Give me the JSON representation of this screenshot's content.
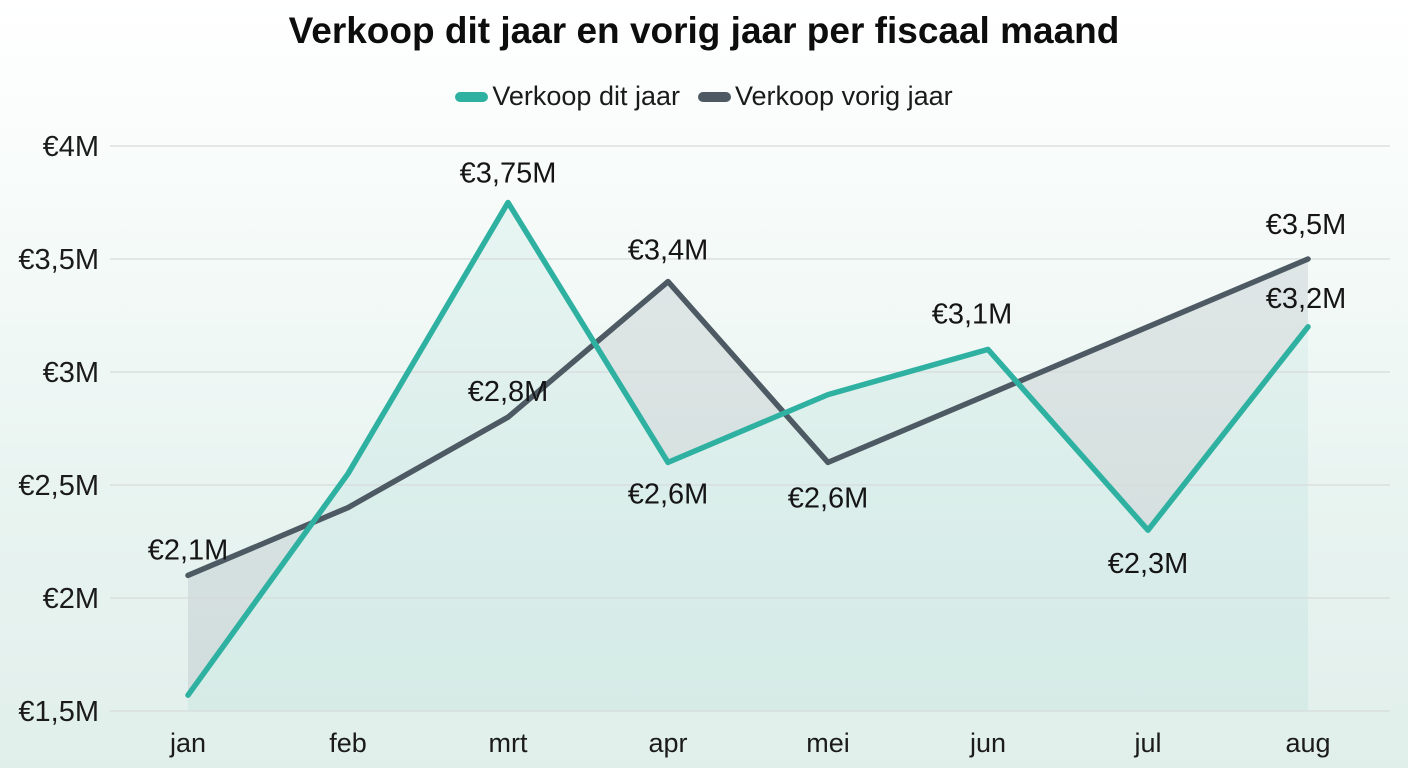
{
  "title": "Verkoop dit jaar en vorig jaar per fiscaal maand",
  "legend": {
    "items": [
      {
        "label": "Verkoop dit jaar",
        "color": "#2fb1a2"
      },
      {
        "label": "Verkoop vorig jaar",
        "color": "#4d5a63"
      }
    ]
  },
  "chart_data": {
    "type": "line",
    "title": "Verkoop dit jaar en vorig jaar per fiscaal maand",
    "categories": [
      "jan",
      "feb",
      "mrt",
      "apr",
      "mei",
      "jun",
      "jul",
      "aug"
    ],
    "series": [
      {
        "name": "Verkoop dit jaar",
        "color": "#2fb1a2",
        "values": [
          1.57,
          2.55,
          3.75,
          2.6,
          2.9,
          3.1,
          2.3,
          3.2
        ],
        "point_labels": [
          "",
          "",
          "€3,75M",
          "€2,6M",
          "",
          "€3,1M",
          "€2,3M",
          "€3,2M"
        ]
      },
      {
        "name": "Verkoop vorig jaar",
        "color": "#4d5a63",
        "values": [
          2.1,
          2.4,
          2.8,
          3.4,
          2.6,
          2.9,
          3.2,
          3.5
        ],
        "point_labels": [
          "€2,1M",
          "",
          "€2,8M",
          "€3,4M",
          "€2,6M",
          "",
          "",
          "€3,5M"
        ]
      }
    ],
    "y_ticks": [
      {
        "value": 4,
        "label": "€4M"
      },
      {
        "value": 3.5,
        "label": "€3,5M"
      },
      {
        "value": 3,
        "label": "€3M"
      },
      {
        "value": 2.5,
        "label": "€2,5M"
      },
      {
        "value": 2,
        "label": "€2M"
      },
      {
        "value": 1.5,
        "label": "€1,5M"
      }
    ],
    "ylim": [
      1.5,
      4
    ],
    "xlabel": "",
    "ylabel": "",
    "grid": true,
    "legend_position": "top",
    "currency_unit": "€ (miljoen)",
    "fill_between_when_prev_year_higher": "#5a6871",
    "fill_under_this_year": "#2fb1a2"
  }
}
